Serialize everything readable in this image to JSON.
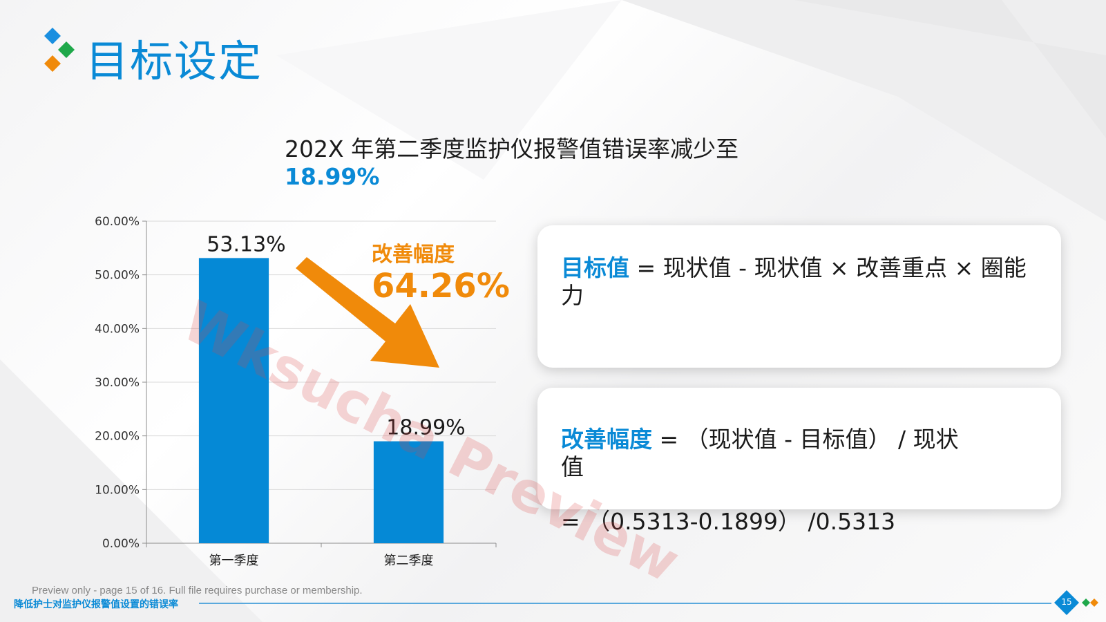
{
  "title": "目标设定",
  "headline": {
    "text": "202X  年第二季度监护仪报警值错误率减少至",
    "highlight": "18.99%"
  },
  "chart_data": {
    "type": "bar",
    "categories": [
      "第一季度",
      "第二季度"
    ],
    "values": [
      53.13,
      18.99
    ],
    "value_labels": [
      "53.13%",
      "18.99%"
    ],
    "y_ticks": [
      "0.00%",
      "10.00%",
      "20.00%",
      "30.00%",
      "40.00%",
      "50.00%",
      "60.00%"
    ],
    "ylim": [
      0,
      60
    ],
    "grid": true,
    "bar_color": "#0589d6",
    "annotation": {
      "label": "改善幅度",
      "value": "64.26%",
      "color": "#f08a0a"
    }
  },
  "formulas": {
    "target": {
      "key": "目标值",
      "expr": "  =  现状值 - 现状值 × 改善重点 × 圈能力"
    },
    "improvement": {
      "key": "改善幅度",
      "expr": " =  （现状值 - 目标值） / 现状值"
    },
    "calc": "=  （0.5313-0.1899） /0.5313"
  },
  "watermark": "Wksucha Preview",
  "preview_note": "Preview only - page 15 of 16. Full file requires purchase or membership.",
  "footer": {
    "title": "降低护士对监护仪报警值设置的错误率",
    "page": "15"
  },
  "colors": {
    "accent_blue": "#0a8ad6",
    "accent_orange": "#f08a0a",
    "logo_green": "#1fa84a"
  }
}
